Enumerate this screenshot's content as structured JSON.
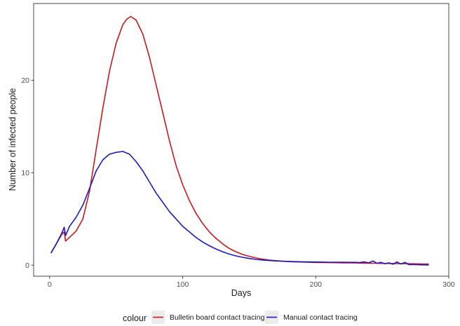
{
  "chart_data": {
    "type": "line",
    "xlabel": "Days",
    "ylabel": "Number of infected people",
    "xlim": [
      -12,
      300
    ],
    "ylim": [
      -1.2,
      28.3
    ],
    "x_ticks": [
      0,
      100,
      200,
      300
    ],
    "x_tick_labels": [
      "0",
      "100",
      "200",
      "300"
    ],
    "y_ticks": [
      0,
      10,
      20
    ],
    "y_tick_labels": [
      "0",
      "10",
      "20"
    ],
    "grid": false,
    "legend": {
      "title": "colour",
      "placement": "bottom",
      "entries": [
        "Bulletin board contact tracing",
        "Manual contact tracing"
      ]
    },
    "series": [
      {
        "name": "Bulletin board contact tracing",
        "color": "#CD1719",
        "x": [
          1,
          5,
          9,
          11,
          12,
          15,
          20,
          25,
          30,
          35,
          40,
          45,
          50,
          55,
          58,
          61,
          65,
          70,
          75,
          80,
          85,
          90,
          95,
          100,
          105,
          110,
          115,
          120,
          125,
          130,
          135,
          140,
          145,
          150,
          155,
          160,
          165,
          170,
          175,
          180,
          185,
          190,
          195,
          200,
          205,
          210,
          215,
          220,
          225,
          230,
          235,
          240,
          245,
          250,
          255,
          260,
          265,
          270,
          275,
          280,
          285
        ],
        "y": [
          1.3,
          2.3,
          3.3,
          3.6,
          2.6,
          3.0,
          3.7,
          5.0,
          8.0,
          12.5,
          17.0,
          21.0,
          24.0,
          26.0,
          26.6,
          26.9,
          26.5,
          25.0,
          22.5,
          19.5,
          16.5,
          13.5,
          10.8,
          8.7,
          7.0,
          5.6,
          4.5,
          3.6,
          2.9,
          2.3,
          1.8,
          1.45,
          1.15,
          0.95,
          0.78,
          0.65,
          0.55,
          0.48,
          0.42,
          0.38,
          0.35,
          0.33,
          0.31,
          0.29,
          0.28,
          0.27,
          0.26,
          0.25,
          0.24,
          0.23,
          0.22,
          0.21,
          0.2,
          0.19,
          0.18,
          0.17,
          0.16,
          0.15,
          0.14,
          0.13,
          0.12
        ]
      },
      {
        "name": "Manual contact tracing",
        "color": "#1B1BC4",
        "x": [
          1,
          5,
          9,
          11,
          12,
          15,
          20,
          25,
          30,
          35,
          40,
          45,
          50,
          55,
          60,
          65,
          70,
          75,
          80,
          85,
          90,
          95,
          100,
          105,
          110,
          115,
          120,
          125,
          130,
          135,
          140,
          145,
          150,
          155,
          160,
          165,
          170,
          175,
          180,
          185,
          190,
          195,
          200,
          205,
          210,
          215,
          220,
          225,
          230,
          233,
          236,
          240,
          243,
          246,
          249,
          252,
          255,
          258,
          261,
          264,
          267,
          270,
          275,
          280,
          285
        ],
        "y": [
          1.3,
          2.3,
          3.4,
          4.1,
          3.2,
          4.2,
          5.2,
          6.5,
          8.3,
          10.2,
          11.4,
          12.0,
          12.2,
          12.3,
          12.0,
          11.2,
          10.2,
          9.0,
          7.8,
          6.8,
          5.8,
          5.0,
          4.2,
          3.6,
          3.0,
          2.5,
          2.1,
          1.75,
          1.45,
          1.2,
          1.0,
          0.85,
          0.72,
          0.62,
          0.55,
          0.5,
          0.45,
          0.42,
          0.4,
          0.38,
          0.36,
          0.35,
          0.34,
          0.33,
          0.32,
          0.32,
          0.31,
          0.3,
          0.3,
          0.28,
          0.35,
          0.25,
          0.45,
          0.2,
          0.3,
          0.15,
          0.25,
          0.1,
          0.35,
          0.12,
          0.3,
          0.05,
          0.05,
          0.03,
          0.02
        ]
      }
    ]
  }
}
